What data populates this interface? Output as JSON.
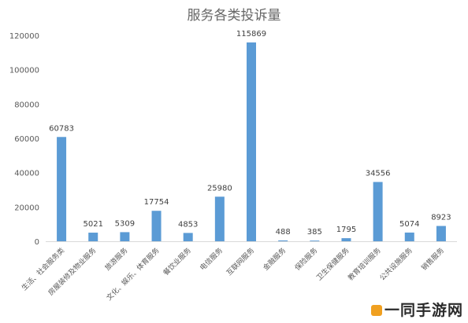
{
  "watermark": "一同手游网",
  "chart_data": {
    "type": "bar",
    "title": "服务各类投诉量",
    "xlabel": "",
    "ylabel": "",
    "ylim": [
      0,
      120000
    ],
    "yticks": [
      0,
      20000,
      40000,
      60000,
      80000,
      100000,
      120000
    ],
    "grid": false,
    "legend": "none",
    "bar_color": "#5b9bd5",
    "categories": [
      "生活、社会服务类",
      "房屋装修及物业服务",
      "旅游服务",
      "文化、娱乐、体育服务",
      "餐饮业服务",
      "电信服务",
      "互联网服务",
      "金融服务",
      "保险服务",
      "卫生保健服务",
      "教育培训服务",
      "公共设施服务",
      "销售服务"
    ],
    "values": [
      60783,
      5021,
      5309,
      17754,
      4853,
      25980,
      115869,
      488,
      385,
      1795,
      34556,
      5074,
      8923
    ],
    "data_labels": [
      "60783",
      "5021",
      "5309",
      "17754",
      "4853",
      "25980",
      "115869",
      "488",
      "385",
      "1795",
      "34556",
      "5074",
      "8923"
    ]
  }
}
